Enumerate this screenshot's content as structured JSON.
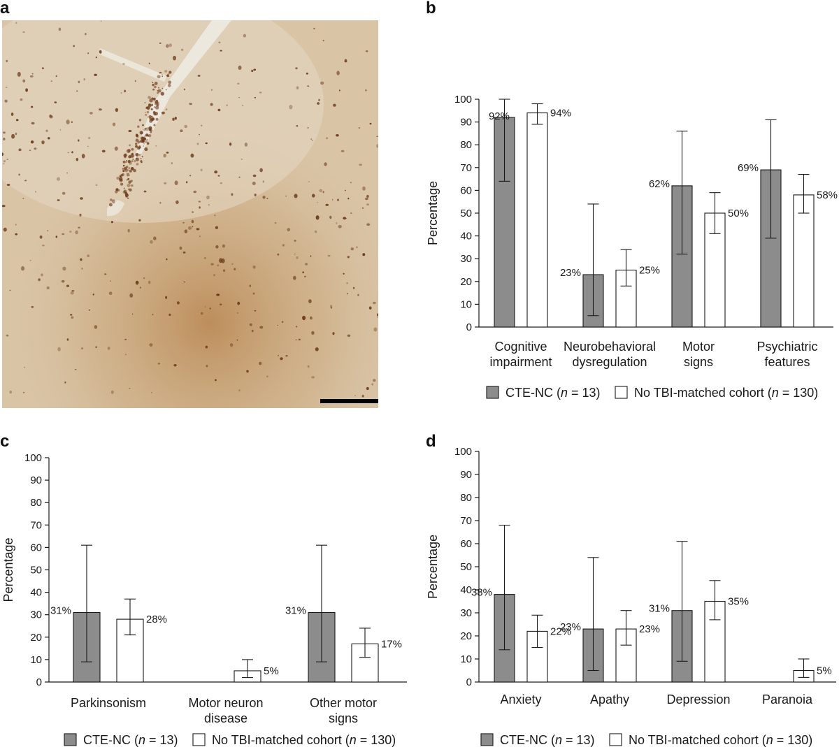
{
  "panel_letters": {
    "a": "a",
    "b": "b",
    "c": "c",
    "d": "d"
  },
  "micrograph": {
    "colors": {
      "background": "#d9c4a6",
      "stain": "#6b3a1a",
      "vessel": "#ede8dd",
      "scale_bar": "#000000"
    }
  },
  "colors": {
    "cte_fill": "#8c8c8c",
    "cohort_fill": "#ffffff",
    "stroke": "#1a1a1a"
  },
  "chart_data": [
    {
      "id": "b",
      "type": "bar",
      "ylabel": "Percentage",
      "ylim": [
        0,
        100
      ],
      "yticks": [
        0,
        10,
        20,
        30,
        40,
        50,
        60,
        70,
        80,
        90,
        100
      ],
      "categories": [
        [
          "Cognitive",
          "impairment"
        ],
        [
          "Neurobehavioral",
          "dysregulation"
        ],
        [
          "Motor",
          "signs"
        ],
        [
          "Psychiatric",
          "features"
        ]
      ],
      "series": [
        {
          "name": "CTE-NC (n = 13)",
          "fill": "#8c8c8c",
          "values": [
            92,
            23,
            62,
            69
          ],
          "labels": [
            "92%",
            "23%",
            "62%",
            "69%"
          ],
          "err_low": [
            64,
            5,
            32,
            39
          ],
          "err_high": [
            100,
            54,
            86,
            91
          ]
        },
        {
          "name": "No TBI-matched cohort (n = 130)",
          "fill": "#ffffff",
          "values": [
            94,
            25,
            50,
            58
          ],
          "labels": [
            "94%",
            "25%",
            "50%",
            "58%"
          ],
          "err_low": [
            89,
            18,
            41,
            50
          ],
          "err_high": [
            98,
            34,
            59,
            67
          ]
        }
      ],
      "legend_placement": "bottom",
      "grid": false
    },
    {
      "id": "c",
      "type": "bar",
      "ylabel": "Percentage",
      "ylim": [
        0,
        100
      ],
      "yticks": [
        0,
        10,
        20,
        30,
        40,
        50,
        60,
        70,
        80,
        90,
        100
      ],
      "categories": [
        [
          "Parkinsonism"
        ],
        [
          "Motor neuron",
          "disease"
        ],
        [
          "Other motor",
          "signs"
        ]
      ],
      "series": [
        {
          "name": "CTE-NC (n = 13)",
          "fill": "#8c8c8c",
          "values": [
            31,
            0,
            31
          ],
          "labels": [
            "31%",
            "",
            "31%"
          ],
          "err_low": [
            9,
            null,
            9
          ],
          "err_high": [
            61,
            null,
            61
          ]
        },
        {
          "name": "No TBI-matched cohort (n = 130)",
          "fill": "#ffffff",
          "values": [
            28,
            5,
            17
          ],
          "labels": [
            "28%",
            "5%",
            "17%"
          ],
          "err_low": [
            21,
            2,
            11
          ],
          "err_high": [
            37,
            10,
            24
          ]
        }
      ],
      "legend_placement": "bottom",
      "grid": false
    },
    {
      "id": "d",
      "type": "bar",
      "ylabel": "Percentage",
      "ylim": [
        0,
        100
      ],
      "yticks": [
        0,
        10,
        20,
        30,
        40,
        50,
        60,
        70,
        80,
        90,
        100
      ],
      "categories": [
        [
          "Anxiety"
        ],
        [
          "Apathy"
        ],
        [
          "Depression"
        ],
        [
          "Paranoia"
        ]
      ],
      "series": [
        {
          "name": "CTE-NC (n = 13)",
          "fill": "#8c8c8c",
          "values": [
            38,
            23,
            31,
            0
          ],
          "labels": [
            "38%",
            "23%",
            "31%",
            ""
          ],
          "err_low": [
            14,
            5,
            9,
            null
          ],
          "err_high": [
            68,
            54,
            61,
            null
          ]
        },
        {
          "name": "No TBI-matched cohort (n = 130)",
          "fill": "#ffffff",
          "values": [
            22,
            23,
            35,
            5
          ],
          "labels": [
            "22%",
            "23%",
            "35%",
            "5%"
          ],
          "err_low": [
            15,
            16,
            27,
            2
          ],
          "err_high": [
            29,
            31,
            44,
            10
          ]
        }
      ],
      "legend_placement": "bottom",
      "grid": false
    }
  ]
}
